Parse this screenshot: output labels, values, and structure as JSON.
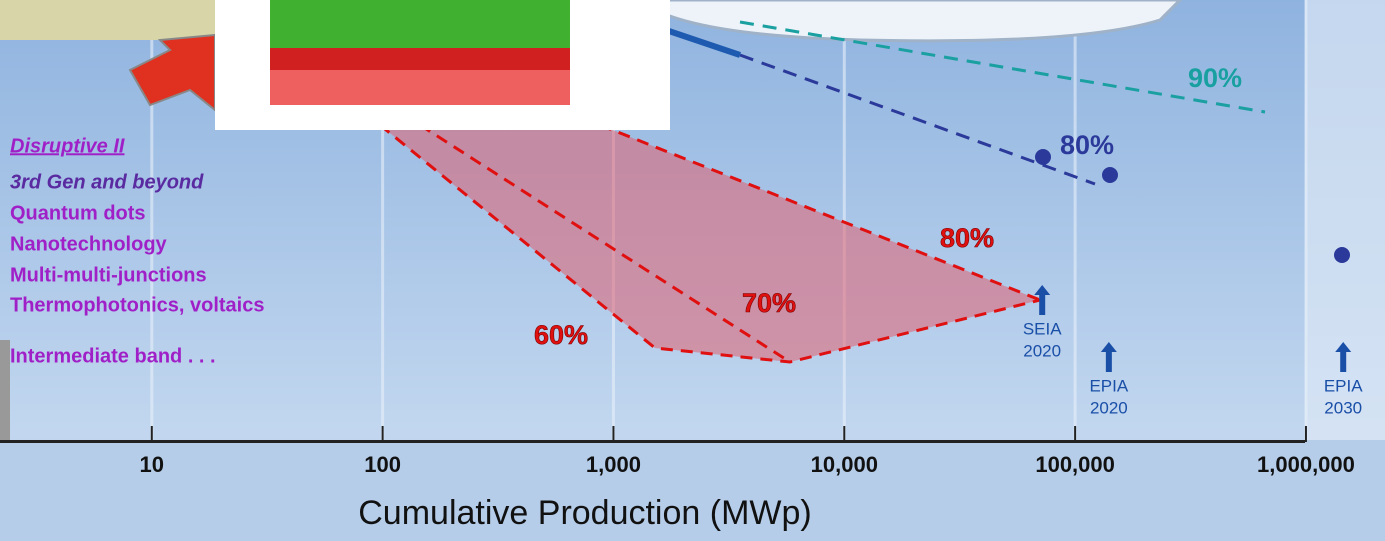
{
  "chart_data": {
    "type": "line",
    "xlabel": "Cumulative Production (MWp)",
    "xscale": "log",
    "xlim": [
      2.2,
      2200000
    ],
    "xticks": [
      10,
      100,
      {
        "value": 1000,
        "label": "1,000"
      },
      {
        "value": 10000,
        "label": "10,000"
      },
      {
        "value": 100000,
        "label": "100,000"
      },
      {
        "value": 1000000,
        "label": "1,000,000"
      }
    ],
    "grid": true,
    "scenarios": [
      {
        "label": [
          "SEIA",
          "2020"
        ],
        "x": 72000
      },
      {
        "label": [
          "EPIA",
          "2020"
        ],
        "x": 140000
      },
      {
        "label": [
          "EPIA",
          "2030"
        ],
        "x": 1450000
      }
    ]
  },
  "annotations": {
    "curve_labels": [
      "90%",
      "80%",
      "80%",
      "70%",
      "60%"
    ],
    "list": [
      "Disruptive II",
      "3rd Gen and beyond",
      "Quantum dots",
      "Nanotechnology",
      "Multi-multi-junctions",
      "Thermophotonics, voltaics",
      "Intermediate band . . ."
    ]
  }
}
